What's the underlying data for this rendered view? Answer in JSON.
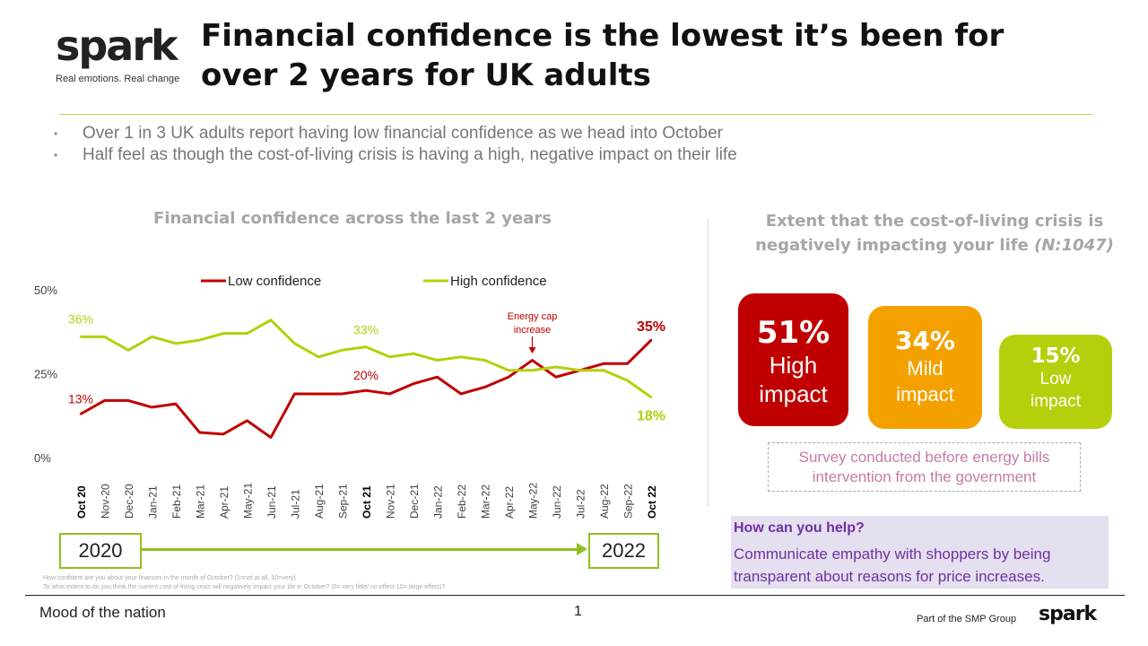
{
  "brand": {
    "logo": "spark",
    "tagline": "Real emotions. Real change"
  },
  "title": "Financial confidence is the lowest it’s been for over 2 years for UK adults",
  "bullets": [
    "Over 1 in 3 UK adults report having low financial confidence as we head into October",
    "Half feel as though the cost-of-living crisis is having a high, negative impact on their life"
  ],
  "colors": {
    "low": "#c00000",
    "high": "#b6cf0c",
    "mild": "#f4a100",
    "help_text": "#7030a0",
    "accent_line": "#92c01f"
  },
  "chart_data": {
    "type": "line",
    "title": "Financial confidence across the last 2 years",
    "categories": [
      "Oct 20",
      "Nov-20",
      "Dec-20",
      "Jan-21",
      "Feb-21",
      "Mar-21",
      "Apr-21",
      "May-21",
      "Jun-21",
      "Jul-21",
      "Aug-21",
      "Sep-21",
      "Oct 21",
      "Nov-21",
      "Dec-21",
      "Jan-22",
      "Feb-22",
      "Mar-22",
      "Apr-22",
      "May-22",
      "Jun-22",
      "Jul-22",
      "Aug-22",
      "Sep-22",
      "Oct 22"
    ],
    "bold_categories": [
      "Oct 20",
      "Oct 21",
      "Oct 22"
    ],
    "yticks": [
      "0%",
      "25%",
      "50%"
    ],
    "ylim": [
      0,
      50
    ],
    "series": [
      {
        "name": "Low confidence",
        "color": "#c00000",
        "values": [
          13,
          17,
          17,
          15,
          16,
          7.5,
          7,
          11,
          6,
          19,
          19,
          19,
          20,
          19,
          22,
          24,
          19,
          21,
          24,
          29,
          24,
          26,
          28,
          28,
          35
        ]
      },
      {
        "name": "High confidence",
        "color": "#b6cf0c",
        "values": [
          36,
          36,
          32,
          36,
          34,
          35,
          37,
          37,
          41,
          34,
          30,
          32,
          33,
          30,
          31,
          29,
          30,
          29,
          26,
          26,
          27,
          26,
          26,
          23,
          18
        ]
      }
    ],
    "data_labels": [
      {
        "series": 0,
        "index": 0,
        "text": "13%"
      },
      {
        "series": 0,
        "index": 12,
        "text": "20%"
      },
      {
        "series": 0,
        "index": 24,
        "text": "35%"
      },
      {
        "series": 1,
        "index": 0,
        "text": "36%"
      },
      {
        "series": 1,
        "index": 12,
        "text": "33%"
      },
      {
        "series": 1,
        "index": 24,
        "text": "18%"
      }
    ],
    "annotation": {
      "text_line1": "Energy cap",
      "text_line2": "increase",
      "index": 19
    },
    "legend_position": "top"
  },
  "timeline": {
    "start": "2020",
    "end": "2022"
  },
  "footnotes": [
    "How confident are you about your finances in the month of October? (1=not at all, 10=very)",
    "To what extent to do you think the current cost-of-living crisis will negatively impact your life in October? (0= very little/ no effect 10= large effect)?"
  ],
  "impact": {
    "title_line1": "Extent that the cost-of-living crisis is",
    "title_line2": "negatively impacting your life",
    "sample": "(N:1047)",
    "boxes": [
      {
        "pct": "51%",
        "label1": "High",
        "label2": "impact"
      },
      {
        "pct": "34%",
        "label1": "Mild",
        "label2": "impact"
      },
      {
        "pct": "15%",
        "label1": "Low",
        "label2": "impact"
      }
    ],
    "note_line1": "Survey conducted before energy bills",
    "note_line2": "intervention from the government"
  },
  "help": {
    "heading": "How can you help?",
    "body": "Communicate empathy with shoppers by being transparent about reasons for price increases."
  },
  "footer": {
    "left": "Mood of the nation",
    "page": "1",
    "group": "Part of the SMP Group",
    "logo": "spark"
  }
}
